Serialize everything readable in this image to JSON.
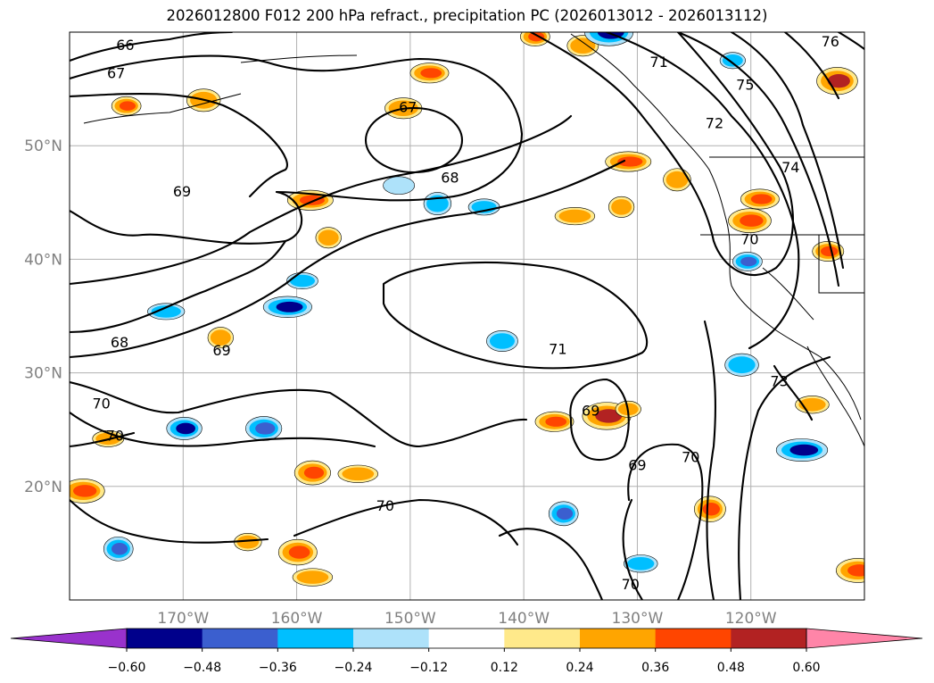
{
  "chart_data": {
    "type": "contour_map",
    "title": "2026012800 F012 200 hPa refract., precipitation PC (2026013012 - 2026013112)",
    "region": "North Pacific / western North America",
    "lon_range": [
      -180,
      -110
    ],
    "lat_range": [
      10,
      60
    ],
    "lon_ticks": [
      {
        "lon": -170,
        "label": "170°W"
      },
      {
        "lon": -160,
        "label": "160°W"
      },
      {
        "lon": -150,
        "label": "150°W"
      },
      {
        "lon": -140,
        "label": "140°W"
      },
      {
        "lon": -130,
        "label": "130°W"
      },
      {
        "lon": -120,
        "label": "120°W"
      }
    ],
    "lat_ticks": [
      {
        "lat": 50,
        "label": "50°N"
      },
      {
        "lat": 40,
        "label": "40°N"
      },
      {
        "lat": 30,
        "label": "30°N"
      },
      {
        "lat": 20,
        "label": "20°N"
      }
    ],
    "grid": true,
    "contour_field": "200 hPa refractivity",
    "contour_labels": [
      {
        "text": "66",
        "lon": -175.1,
        "lat": 58.8
      },
      {
        "text": "67",
        "lon": -175.9,
        "lat": 56.3
      },
      {
        "text": "67",
        "lon": -150.2,
        "lat": 53.3
      },
      {
        "text": "68",
        "lon": -146.5,
        "lat": 47.1
      },
      {
        "text": "69",
        "lon": -170.1,
        "lat": 45.9
      },
      {
        "text": "68",
        "lon": -175.6,
        "lat": 32.6
      },
      {
        "text": "69",
        "lon": -166.6,
        "lat": 31.9
      },
      {
        "text": "71",
        "lon": -137.0,
        "lat": 32.0
      },
      {
        "text": "70",
        "lon": -177.2,
        "lat": 27.2
      },
      {
        "text": "70",
        "lon": -176.0,
        "lat": 24.4
      },
      {
        "text": "69",
        "lon": -134.1,
        "lat": 26.6
      },
      {
        "text": "69",
        "lon": -130.0,
        "lat": 21.8
      },
      {
        "text": "70",
        "lon": -125.3,
        "lat": 22.5
      },
      {
        "text": "70",
        "lon": -152.2,
        "lat": 18.2
      },
      {
        "text": "70",
        "lon": -130.6,
        "lat": 11.3
      },
      {
        "text": "71",
        "lon": -128.1,
        "lat": 57.3
      },
      {
        "text": "72",
        "lon": -123.2,
        "lat": 51.9
      },
      {
        "text": "75",
        "lon": -120.5,
        "lat": 55.3
      },
      {
        "text": "76",
        "lon": -113.0,
        "lat": 59.1
      },
      {
        "text": "74",
        "lon": -116.5,
        "lat": 48.0
      },
      {
        "text": "70",
        "lon": -120.1,
        "lat": 41.7
      },
      {
        "text": "73",
        "lon": -117.5,
        "lat": 29.2
      }
    ],
    "fill_field": "precipitation PC",
    "colorbar": {
      "extend": "both",
      "boundaries": [
        -0.6,
        -0.48,
        -0.36,
        -0.24,
        -0.12,
        0.12,
        0.24,
        0.36,
        0.48,
        0.6
      ],
      "tick_labels": [
        "−0.60",
        "−0.48",
        "−0.36",
        "−0.24",
        "−0.12",
        "0.12",
        "0.24",
        "0.36",
        "0.48",
        "0.60"
      ],
      "colors": [
        "#9932cc",
        "#00008b",
        "#3b5fcf",
        "#00bfff",
        "#aee2fa",
        "#ffffff",
        "#ffe98a",
        "#ffa500",
        "#ff4500",
        "#b22222",
        "#ff85a8"
      ]
    },
    "precip_blobs": [
      {
        "lon": -175.0,
        "lat": 53.5,
        "value": 0.4
      },
      {
        "lon": -168.2,
        "lat": 54.0,
        "value": 0.35
      },
      {
        "lon": -158.8,
        "lat": 45.2,
        "value": 0.45
      },
      {
        "lon": -157.2,
        "lat": 41.9,
        "value": 0.3
      },
      {
        "lon": -148.3,
        "lat": 56.4,
        "value": 0.45
      },
      {
        "lon": -150.6,
        "lat": 53.3,
        "value": 0.3
      },
      {
        "lon": -139.0,
        "lat": 59.6,
        "value": 0.4
      },
      {
        "lon": -134.8,
        "lat": 58.8,
        "value": 0.3
      },
      {
        "lon": -130.8,
        "lat": 48.6,
        "value": 0.45
      },
      {
        "lon": -126.5,
        "lat": 47.0,
        "value": 0.35
      },
      {
        "lon": -119.2,
        "lat": 45.3,
        "value": 0.45
      },
      {
        "lon": -120.1,
        "lat": 43.4,
        "value": 0.4
      },
      {
        "lon": -113.2,
        "lat": 40.7,
        "value": 0.45
      },
      {
        "lon": -112.4,
        "lat": 55.7,
        "value": 0.5
      },
      {
        "lon": -135.5,
        "lat": 43.8,
        "value": 0.35
      },
      {
        "lon": -131.4,
        "lat": 44.6,
        "value": 0.3
      },
      {
        "lon": -137.3,
        "lat": 25.7,
        "value": 0.45
      },
      {
        "lon": -132.7,
        "lat": 26.2,
        "value": 0.5
      },
      {
        "lon": -130.8,
        "lat": 26.8,
        "value": 0.3
      },
      {
        "lon": -158.6,
        "lat": 21.2,
        "value": 0.4
      },
      {
        "lon": -154.6,
        "lat": 21.1,
        "value": 0.35
      },
      {
        "lon": -123.6,
        "lat": 18.0,
        "value": 0.45
      },
      {
        "lon": -176.6,
        "lat": 24.2,
        "value": 0.3
      },
      {
        "lon": -178.8,
        "lat": 19.6,
        "value": 0.4
      },
      {
        "lon": -164.3,
        "lat": 15.1,
        "value": 0.35
      },
      {
        "lon": -159.9,
        "lat": 14.2,
        "value": 0.45
      },
      {
        "lon": -158.6,
        "lat": 12.0,
        "value": 0.35
      },
      {
        "lon": -166.7,
        "lat": 33.1,
        "value": 0.3
      },
      {
        "lon": -114.6,
        "lat": 27.2,
        "value": 0.35
      },
      {
        "lon": -110.6,
        "lat": 12.6,
        "value": 0.4
      },
      {
        "lon": -169.9,
        "lat": 25.1,
        "value": -0.55
      },
      {
        "lon": -162.9,
        "lat": 25.1,
        "value": -0.4
      },
      {
        "lon": -160.8,
        "lat": 35.8,
        "value": -0.5
      },
      {
        "lon": -147.6,
        "lat": 44.9,
        "value": -0.35
      },
      {
        "lon": -143.5,
        "lat": 44.6,
        "value": -0.3
      },
      {
        "lon": -151.0,
        "lat": 46.5,
        "value": -0.2
      },
      {
        "lon": -120.3,
        "lat": 39.8,
        "value": -0.4
      },
      {
        "lon": -120.8,
        "lat": 30.7,
        "value": -0.35
      },
      {
        "lon": -115.5,
        "lat": 23.2,
        "value": -0.55
      },
      {
        "lon": -136.5,
        "lat": 17.6,
        "value": -0.4
      },
      {
        "lon": -129.7,
        "lat": 13.2,
        "value": -0.35
      },
      {
        "lon": -132.5,
        "lat": 60.0,
        "value": -0.5
      },
      {
        "lon": -121.6,
        "lat": 57.5,
        "value": -0.3
      },
      {
        "lon": -141.9,
        "lat": 32.8,
        "value": -0.3
      },
      {
        "lon": -171.5,
        "lat": 35.4,
        "value": -0.3
      },
      {
        "lon": -175.7,
        "lat": 14.5,
        "value": -0.4
      },
      {
        "lon": -159.5,
        "lat": 38.1,
        "value": -0.3
      }
    ]
  }
}
